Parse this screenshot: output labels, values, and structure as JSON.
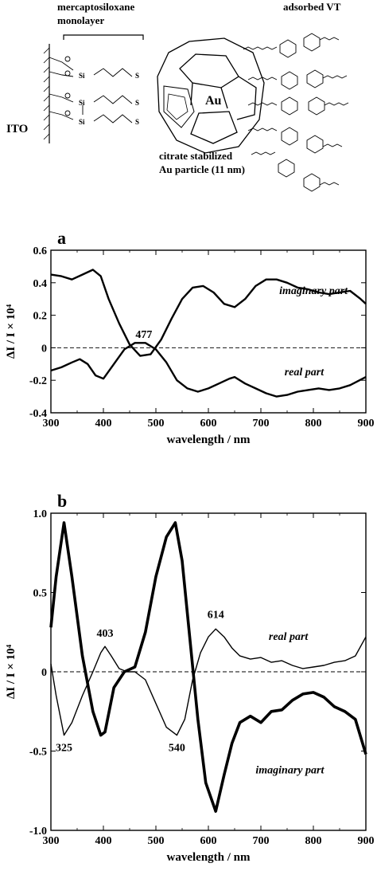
{
  "diagram": {
    "label_monolayer": "mercaptosiloxane",
    "label_monolayer2": "monolayer",
    "label_adsorbed": "adsorbed VT",
    "label_ito": "ITO",
    "label_particle": "citrate stabilized",
    "label_particle2": "Au particle (11 nm)",
    "label_au": "Au",
    "label_si": "Si",
    "label_s": "S"
  },
  "chart_data": [
    {
      "type": "line",
      "panel_label": "a",
      "xlabel": "wavelength / nm",
      "ylabel": "ΔI / I × 10⁴",
      "xlim": [
        300,
        900
      ],
      "ylim": [
        -0.4,
        0.6
      ],
      "xticks": [
        "300",
        "400",
        "500",
        "600",
        "700",
        "800",
        "900"
      ],
      "yticks": [
        "0.6",
        "0.4",
        "0.2",
        "0",
        "-0.2",
        "-0.4"
      ],
      "annotations": [
        {
          "text": "477",
          "x": 477,
          "y": 0.06
        }
      ],
      "series": [
        {
          "name": "imaginary part",
          "x": [
            300,
            320,
            340,
            360,
            380,
            395,
            410,
            430,
            450,
            470,
            490,
            510,
            530,
            550,
            570,
            590,
            610,
            630,
            650,
            670,
            690,
            710,
            730,
            750,
            770,
            790,
            810,
            830,
            850,
            870,
            890,
            900
          ],
          "y": [
            0.45,
            0.44,
            0.42,
            0.45,
            0.48,
            0.44,
            0.3,
            0.15,
            0.02,
            -0.05,
            -0.04,
            0.05,
            0.18,
            0.3,
            0.37,
            0.38,
            0.34,
            0.27,
            0.25,
            0.3,
            0.38,
            0.42,
            0.42,
            0.4,
            0.37,
            0.36,
            0.34,
            0.33,
            0.34,
            0.35,
            0.3,
            0.27
          ]
        },
        {
          "name": "real part",
          "x": [
            300,
            320,
            340,
            355,
            370,
            385,
            400,
            420,
            440,
            460,
            480,
            500,
            520,
            540,
            560,
            580,
            600,
            620,
            640,
            650,
            670,
            690,
            710,
            730,
            750,
            770,
            790,
            810,
            830,
            850,
            870,
            900
          ],
          "y": [
            -0.14,
            -0.12,
            -0.09,
            -0.07,
            -0.1,
            -0.17,
            -0.19,
            -0.1,
            -0.01,
            0.03,
            0.03,
            -0.01,
            -0.09,
            -0.2,
            -0.25,
            -0.27,
            -0.25,
            -0.22,
            -0.19,
            -0.18,
            -0.22,
            -0.25,
            -0.28,
            -0.3,
            -0.29,
            -0.27,
            -0.26,
            -0.25,
            -0.26,
            -0.25,
            -0.23,
            -0.18
          ]
        }
      ]
    },
    {
      "type": "line",
      "panel_label": "b",
      "xlabel": "wavelength / nm",
      "ylabel": "ΔI / I × 10⁴",
      "xlim": [
        300,
        900
      ],
      "ylim": [
        -1.0,
        1.0
      ],
      "xticks": [
        "300",
        "400",
        "500",
        "600",
        "700",
        "800",
        "900"
      ],
      "yticks": [
        "1.0",
        "0.5",
        "0",
        "-0.5",
        "-1.0"
      ],
      "annotations": [
        {
          "text": "325",
          "x": 325,
          "y": -0.5
        },
        {
          "text": "403",
          "x": 403,
          "y": 0.22
        },
        {
          "text": "540",
          "x": 540,
          "y": -0.5
        },
        {
          "text": "614",
          "x": 614,
          "y": 0.34
        }
      ],
      "series": [
        {
          "name": "real part",
          "x": [
            300,
            310,
            325,
            340,
            360,
            380,
            395,
            403,
            415,
            430,
            445,
            460,
            480,
            500,
            520,
            540,
            555,
            570,
            585,
            600,
            614,
            630,
            645,
            660,
            680,
            700,
            720,
            740,
            760,
            780,
            800,
            820,
            840,
            860,
            880,
            900
          ],
          "y": [
            0.05,
            -0.15,
            -0.4,
            -0.32,
            -0.15,
            0.0,
            0.12,
            0.16,
            0.1,
            0.02,
            0.0,
            0.0,
            -0.05,
            -0.2,
            -0.35,
            -0.4,
            -0.3,
            -0.05,
            0.12,
            0.22,
            0.27,
            0.22,
            0.15,
            0.1,
            0.08,
            0.09,
            0.06,
            0.07,
            0.04,
            0.02,
            0.03,
            0.04,
            0.06,
            0.07,
            0.1,
            0.22
          ]
        },
        {
          "name": "imaginary part",
          "x": [
            300,
            310,
            325,
            340,
            360,
            380,
            395,
            403,
            420,
            440,
            460,
            480,
            500,
            520,
            537,
            550,
            565,
            580,
            595,
            614,
            630,
            645,
            660,
            680,
            700,
            720,
            740,
            760,
            780,
            800,
            820,
            840,
            860,
            880,
            900
          ],
          "y": [
            0.28,
            0.6,
            0.94,
            0.6,
            0.1,
            -0.25,
            -0.4,
            -0.38,
            -0.1,
            0.0,
            0.03,
            0.25,
            0.6,
            0.85,
            0.94,
            0.7,
            0.2,
            -0.3,
            -0.7,
            -0.88,
            -0.65,
            -0.45,
            -0.32,
            -0.28,
            -0.32,
            -0.25,
            -0.24,
            -0.18,
            -0.14,
            -0.13,
            -0.16,
            -0.22,
            -0.25,
            -0.3,
            -0.52
          ]
        }
      ]
    }
  ]
}
